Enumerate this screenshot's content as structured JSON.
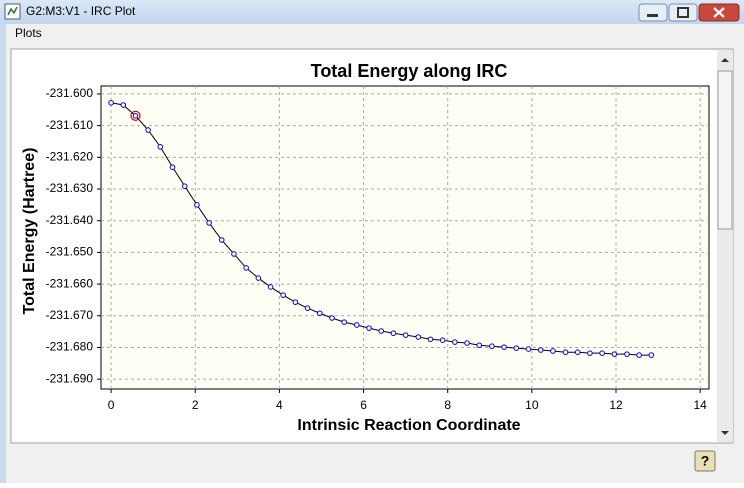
{
  "window": {
    "title": "G2:M3:V1 - IRC Plot",
    "menu": [
      "Plots"
    ],
    "help_button": "?"
  },
  "chart_data": {
    "type": "line",
    "title": "Total Energy along IRC",
    "x_label": "Intrinsic Reaction Coordinate",
    "y_label": "Total Energy (Hartree)",
    "x": [
      0,
      0.29,
      0.58,
      0.88,
      1.17,
      1.46,
      1.75,
      2.04,
      2.33,
      2.63,
      2.92,
      3.21,
      3.5,
      3.79,
      4.09,
      4.38,
      4.67,
      4.96,
      5.25,
      5.54,
      5.84,
      6.13,
      6.42,
      6.71,
      7.0,
      7.3,
      7.59,
      7.88,
      8.17,
      8.46,
      8.75,
      9.05,
      9.34,
      9.63,
      9.92,
      10.21,
      10.5,
      10.8,
      11.09,
      11.38,
      11.67,
      11.96,
      12.26,
      12.55,
      12.84
    ],
    "series": [
      {
        "name": "Total Energy",
        "color": "#0000ff",
        "line_color": "#000000",
        "values": [
          -231.6028,
          -231.6035,
          -231.6069,
          -231.6114,
          -231.6167,
          -231.6231,
          -231.6291,
          -231.635,
          -231.6407,
          -231.6461,
          -231.6505,
          -231.6549,
          -231.6581,
          -231.6609,
          -231.6635,
          -231.6657,
          -231.6676,
          -231.6692,
          -231.6707,
          -231.672,
          -231.6729,
          -231.6739,
          -231.6748,
          -231.6755,
          -231.6761,
          -231.6767,
          -231.6774,
          -231.6777,
          -231.6783,
          -231.6786,
          -231.6793,
          -231.6796,
          -231.6799,
          -231.6802,
          -231.6805,
          -231.6808,
          -231.6811,
          -231.6815,
          -231.6815,
          -231.6818,
          -231.6818,
          -231.6821,
          -231.6821,
          -231.6824,
          -231.6824
        ]
      }
    ],
    "highlighted_point": 2,
    "highlight_color": "#cc0000",
    "xlim": [
      -0.24,
      14.21
    ],
    "xticks": [
      0,
      2,
      4,
      6,
      8,
      10,
      12,
      14
    ],
    "ylim": [
      -231.6931,
      -231.5975
    ],
    "yticks": [
      {
        "value": -231.6,
        "label": "-231.600"
      },
      {
        "value": -231.61,
        "label": "-231.610"
      },
      {
        "value": -231.62,
        "label": "-231.620"
      },
      {
        "value": -231.63,
        "label": "-231.630"
      },
      {
        "value": -231.64,
        "label": "-231.640"
      },
      {
        "value": -231.65,
        "label": "-231.650"
      },
      {
        "value": -231.66,
        "label": "-231.660"
      },
      {
        "value": -231.67,
        "label": "-231.670"
      },
      {
        "value": -231.68,
        "label": "-231.680"
      },
      {
        "value": -231.69,
        "label": "-231.690"
      }
    ],
    "grid": true
  }
}
